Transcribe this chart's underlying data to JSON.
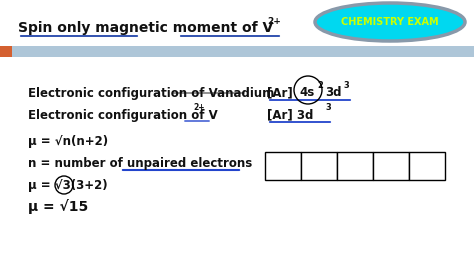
{
  "bg_color": "#f2f2f2",
  "title_text_main": "Spin only magnetic moment of V",
  "title_superscript": "2+",
  "header_bar_color": "#aec6d8",
  "header_bar_orange_color": "#d46030",
  "chemistry_exam_text": "CHEMISTRY EXAM",
  "chemistry_exam_text_color": "#ccff00",
  "ellipse_fill": "#00d8f0",
  "ellipse_edge": "#8899aa",
  "underline_color_title": "#2244aa",
  "underline_color_blue": "#2244cc",
  "strikethrough_color": "#666666",
  "text_color": "#111111",
  "text_color_bold": "#000000",
  "line1_label": "Electronic configuration of Vanadium",
  "line1_config": "[Ar] 4s",
  "line1_sup1": "2",
  "line1_suffix": " 3d",
  "line1_sup2": "3",
  "line2_label": "Electronic configuration of V",
  "line2_sup": "2+",
  "line2_config": "[Ar] 3d",
  "line2_sup2": "3",
  "formula1": "μ = √n(n+2)",
  "formula2": "n = number of unpaired electrons",
  "formula3": "μ = √3(3+2)",
  "formula4": "μ = √15",
  "num_cells": 5,
  "arrows_in_cells": [
    true,
    true,
    true,
    false,
    false
  ]
}
